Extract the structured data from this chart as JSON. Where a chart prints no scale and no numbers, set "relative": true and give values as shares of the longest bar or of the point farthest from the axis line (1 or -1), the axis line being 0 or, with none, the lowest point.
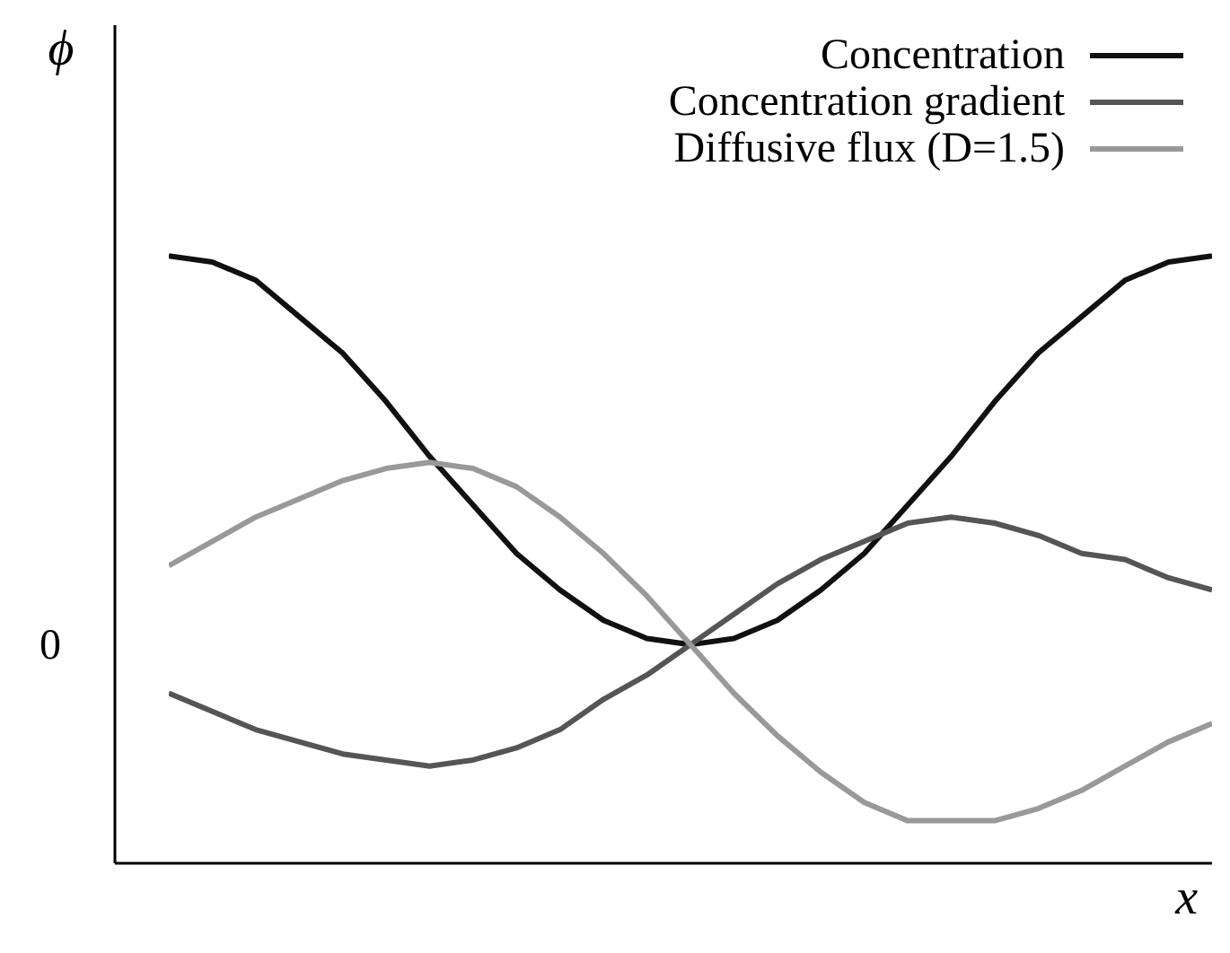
{
  "chart_data": {
    "type": "line",
    "relative": true,
    "xlabel": "x",
    "ylabel": "ϕ",
    "categories": [
      null,
      null,
      null,
      null,
      null,
      null,
      null,
      null,
      null,
      null,
      null,
      null,
      null,
      null,
      null,
      null,
      null,
      null,
      null,
      null,
      null,
      null,
      null,
      null,
      null
    ],
    "annotations": [
      "0"
    ],
    "grid": false,
    "legend": "top right",
    "marker": "none",
    "line_style": "solid",
    "series": [
      {
        "name": "Concentration",
        "color": "#111111",
        "values": [
          1,
          0.99,
          0.96,
          0.9,
          0.84,
          0.76,
          0.67,
          0.59,
          0.51,
          0.45,
          0.4,
          0.37,
          0.36,
          0.37,
          0.4,
          0.45,
          0.51,
          0.59,
          0.67,
          0.76,
          0.84,
          0.9,
          0.96,
          0.99,
          1
        ]
      },
      {
        "name": "Concentration gradient",
        "color": "#555555",
        "values": [
          0.28,
          0.25,
          0.22,
          0.2,
          0.18,
          0.17,
          0.16,
          0.17,
          0.19,
          0.22,
          0.27,
          0.31,
          0.36,
          0.41,
          0.46,
          0.5,
          0.53,
          0.56,
          0.57,
          0.56,
          0.54,
          0.51,
          0.5,
          0.47,
          0.45
        ]
      },
      {
        "name": "Diffusive flux (D=1.5)",
        "color": "#999999",
        "values": [
          0.49,
          0.53,
          0.57,
          0.6,
          0.63,
          0.65,
          0.66,
          0.65,
          0.62,
          0.57,
          0.51,
          0.44,
          0.36,
          0.28,
          0.21,
          0.15,
          0.1,
          0.07,
          0.07,
          0.07,
          0.09,
          0.12,
          0.16,
          0.2,
          0.23
        ]
      }
    ]
  }
}
